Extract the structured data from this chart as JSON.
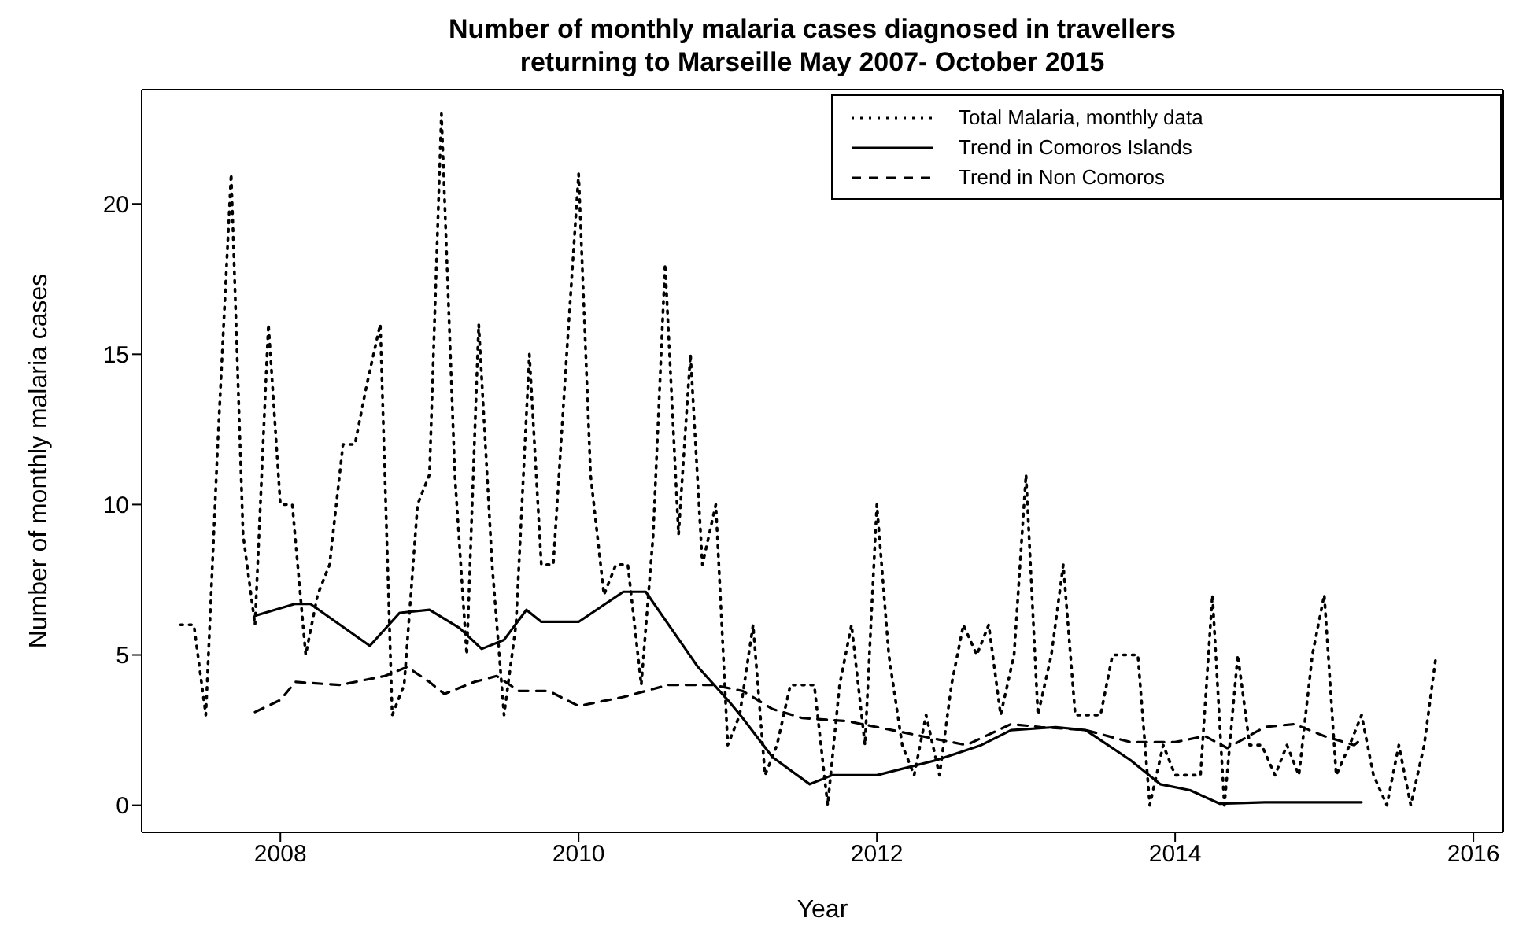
{
  "chart_data": {
    "type": "line",
    "title": "Number of monthly malaria cases diagnosed in travellers returning to Marseille May 2007- October 2015",
    "xlabel": "Year",
    "ylabel": "Number of monthly malaria cases",
    "xlim": [
      2007.07,
      2016.2
    ],
    "xticks": [
      2008,
      2010,
      2012,
      2014,
      2016
    ],
    "ylim": [
      -0.9,
      23.8
    ],
    "yticks": [
      0,
      5,
      10,
      15,
      20
    ],
    "legend": "top right",
    "marker": "none",
    "series": [
      {
        "name": "Total Malaria, monthly data",
        "color": "#000000",
        "line_style": "dotted",
        "x": [
          2007.33,
          2007.42,
          2007.5,
          2007.58,
          2007.67,
          2007.75,
          2007.83,
          2007.92,
          2008,
          2008.08,
          2008.17,
          2008.25,
          2008.33,
          2008.42,
          2008.5,
          2008.58,
          2008.67,
          2008.75,
          2008.83,
          2008.92,
          2009,
          2009.08,
          2009.17,
          2009.25,
          2009.33,
          2009.42,
          2009.5,
          2009.58,
          2009.67,
          2009.75,
          2009.83,
          2009.92,
          2010,
          2010.08,
          2010.17,
          2010.25,
          2010.33,
          2010.42,
          2010.5,
          2010.58,
          2010.67,
          2010.75,
          2010.83,
          2010.92,
          2011,
          2011.08,
          2011.17,
          2011.25,
          2011.33,
          2011.42,
          2011.5,
          2011.58,
          2011.67,
          2011.75,
          2011.83,
          2011.92,
          2012,
          2012.08,
          2012.17,
          2012.25,
          2012.33,
          2012.42,
          2012.5,
          2012.58,
          2012.67,
          2012.75,
          2012.83,
          2012.92,
          2013,
          2013.08,
          2013.17,
          2013.25,
          2013.33,
          2013.42,
          2013.5,
          2013.58,
          2013.67,
          2013.75,
          2013.83,
          2013.92,
          2014,
          2014.08,
          2014.17,
          2014.25,
          2014.33,
          2014.42,
          2014.5,
          2014.58,
          2014.67,
          2014.75,
          2014.83,
          2014.92,
          2015,
          2015.08,
          2015.17,
          2015.25,
          2015.33,
          2015.42,
          2015.5,
          2015.58,
          2015.67,
          2015.75
        ],
        "values": [
          6,
          6,
          3,
          12,
          21,
          9,
          6,
          16,
          10,
          10,
          5,
          7,
          8,
          12,
          12,
          14,
          16,
          3,
          4,
          10,
          11,
          23,
          11,
          5,
          16,
          8,
          3,
          6,
          15,
          8,
          8,
          15,
          21,
          11,
          7,
          8,
          8,
          4,
          9,
          18,
          9,
          15,
          8,
          10,
          2,
          3,
          6,
          1,
          2,
          4,
          4,
          4,
          0,
          4,
          6,
          2,
          10,
          5,
          2,
          1,
          3,
          1,
          4,
          6,
          5,
          6,
          3,
          5,
          11,
          3,
          5,
          8,
          3,
          3,
          3,
          5,
          5,
          5,
          0,
          2,
          1,
          1,
          1,
          7,
          0,
          5,
          2,
          2,
          1,
          2,
          1,
          5,
          7,
          1,
          2,
          3,
          1,
          0,
          2,
          0,
          2,
          5
        ]
      },
      {
        "name": "Trend in Comoros Islands",
        "color": "#000000",
        "line_style": "solid",
        "x": [
          2007.83,
          2008.1,
          2008.2,
          2008.4,
          2008.6,
          2008.8,
          2009,
          2009.2,
          2009.35,
          2009.5,
          2009.65,
          2009.75,
          2010,
          2010.3,
          2010.45,
          2010.8,
          2011,
          2011.1,
          2011.3,
          2011.55,
          2011.7,
          2012,
          2012.4,
          2012.7,
          2012.9,
          2013.2,
          2013.4,
          2013.7,
          2013.9,
          2014.1,
          2014.3,
          2014.6,
          2015.25
        ],
        "values": [
          6.3,
          6.7,
          6.7,
          6,
          5.3,
          6.4,
          6.5,
          5.9,
          5.2,
          5.5,
          6.5,
          6.1,
          6.1,
          7.1,
          7.1,
          4.6,
          3.5,
          2.9,
          1.6,
          0.7,
          1,
          1,
          1.5,
          2,
          2.5,
          2.6,
          2.5,
          1.5,
          0.7,
          0.5,
          0.05,
          0.1,
          0.1
        ]
      },
      {
        "name": "Trend in Non Comoros",
        "color": "#000000",
        "line_style": "dashed",
        "x": [
          2007.83,
          2008,
          2008.1,
          2008.4,
          2008.7,
          2008.85,
          2009,
          2009.1,
          2009.3,
          2009.45,
          2009.6,
          2009.8,
          2010,
          2010.3,
          2010.6,
          2010.9,
          2011.1,
          2011.3,
          2011.5,
          2011.8,
          2012,
          2012.3,
          2012.6,
          2012.9,
          2013.1,
          2013.4,
          2013.7,
          2014,
          2014.2,
          2014.35,
          2014.6,
          2014.8,
          2015,
          2015.2,
          2015.25
        ],
        "values": [
          3.1,
          3.5,
          4.1,
          4,
          4.3,
          4.6,
          4.1,
          3.7,
          4.1,
          4.3,
          3.8,
          3.8,
          3.3,
          3.6,
          4,
          4,
          3.8,
          3.2,
          2.9,
          2.8,
          2.6,
          2.3,
          2,
          2.7,
          2.6,
          2.5,
          2.1,
          2.1,
          2.3,
          1.9,
          2.6,
          2.7,
          2.3,
          2,
          2.2
        ]
      }
    ]
  }
}
